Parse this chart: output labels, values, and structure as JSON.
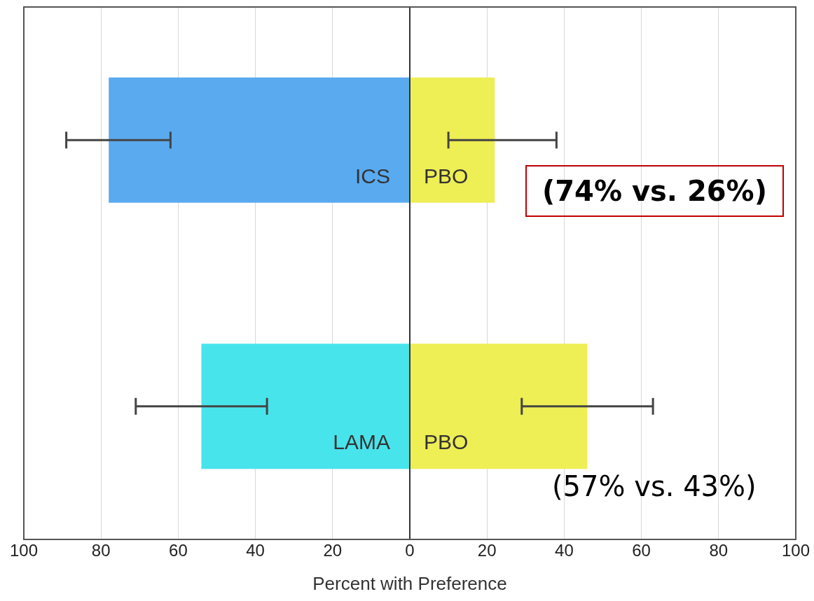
{
  "chart_data": {
    "type": "bar",
    "orientation": "horizontal",
    "stacked": true,
    "categories": [
      null,
      null
    ],
    "series": [
      {
        "colors": [
          "#5aaaf0",
          "#48e4ec"
        ],
        "values": [
          -78,
          -54
        ],
        "errors": [
          [
            -89,
            -62
          ],
          [
            -71,
            -37
          ]
        ],
        "value_labels": [
          "ICS",
          "LAMA"
        ]
      },
      {
        "color": "#eeee55",
        "values": [
          22,
          46
        ],
        "errors": [
          [
            10,
            38
          ],
          [
            29,
            63
          ]
        ],
        "value_labels": [
          "PBO",
          "PBO"
        ]
      }
    ],
    "xlim": [
      -100,
      100
    ],
    "xticks": [
      {
        "value": -100,
        "label": "100"
      },
      {
        "value": -80,
        "label": "80"
      },
      {
        "value": -60,
        "label": "60"
      },
      {
        "value": -40,
        "label": "40"
      },
      {
        "value": -20,
        "label": "20"
      },
      0,
      20,
      40,
      60,
      80,
      100
    ],
    "xlabel": "Percent with Preference",
    "grid": "x",
    "tick_labels": "x",
    "annotations": [
      "(74% vs. 26%)",
      "(57% vs. 43%)"
    ]
  }
}
